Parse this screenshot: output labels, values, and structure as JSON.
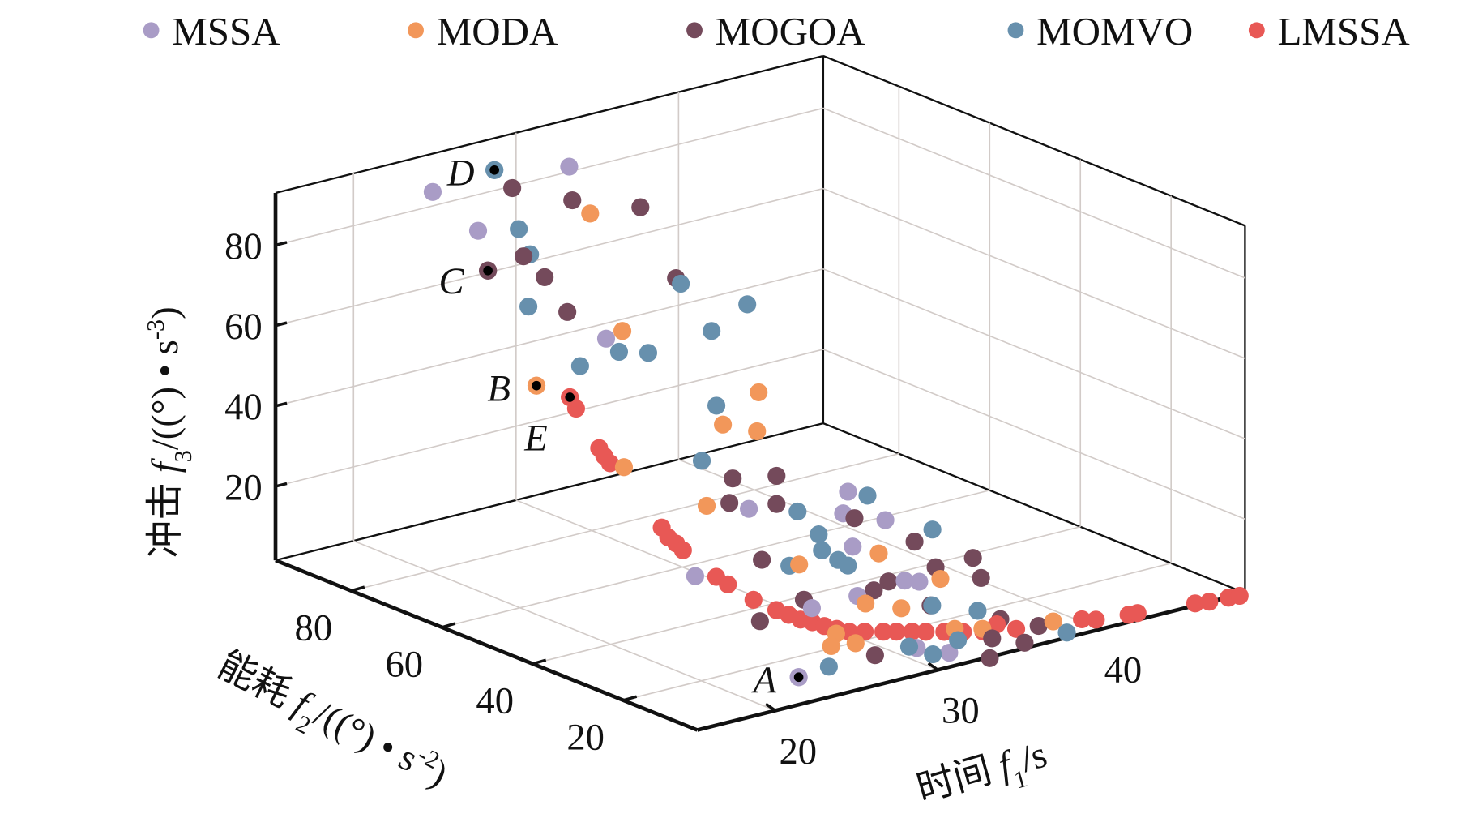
{
  "chart_data": {
    "type": "scatter",
    "subtype": "3d-scatter",
    "title": "",
    "axes": {
      "x": {
        "label_cn": "时间",
        "label_var": "f",
        "label_sub": "1",
        "label_unit": "/s",
        "ticks": [
          20,
          30,
          40
        ],
        "range": [
          15.2,
          48.9
        ]
      },
      "y": {
        "label_cn": "能耗",
        "label_var": "f",
        "label_sub": "2",
        "label_unit": "/((°) • s",
        "label_unit_sup": "-2",
        "label_unit_end": ")",
        "ticks": [
          20,
          40,
          60,
          80
        ],
        "range": [
          3.7,
          96.7
        ]
      },
      "z": {
        "label_cn": "冲击",
        "label_var": "f",
        "label_sub": "3",
        "label_unit": "/((°) • s",
        "label_unit_sup": "-3",
        "label_unit_end": ")",
        "ticks": [
          20,
          40,
          60,
          80
        ],
        "range": [
          1.6,
          93
        ]
      }
    },
    "grid": true,
    "legend_position": "top",
    "series": [
      {
        "name": "MSSA",
        "color": "#a99cc6",
        "points": [
          [
            23.0,
            90,
            88.4
          ],
          [
            31.4,
            90,
            86.2
          ],
          [
            24.4,
            85,
            79.6
          ],
          [
            25.3,
            60,
            63.2
          ],
          [
            25.2,
            40,
            13.3
          ],
          [
            28.5,
            40,
            26.7
          ],
          [
            34.6,
            40,
            24.8
          ],
          [
            34.3,
            40,
            19.7
          ],
          [
            36.9,
            40,
            15.4
          ],
          [
            32.1,
            30,
            18.2
          ],
          [
            35.3,
            30,
            6.5
          ],
          [
            31.0,
            25,
            9.3
          ],
          [
            34.8,
            25,
            9.0
          ],
          [
            31.9,
            8,
            2.0
          ],
          [
            29.9,
            8,
            5.2
          ],
          [
            26.8,
            20,
            12.8
          ],
          [
            21.8,
            5,
            7.5
          ]
        ]
      },
      {
        "name": "MODA",
        "color": "#f2975a",
        "points": [
          [
            29.9,
            80,
            80.6
          ],
          [
            26.3,
            60,
            64.1
          ],
          [
            25.2,
            75,
            44.8
          ],
          [
            30.5,
            45,
            51.4
          ],
          [
            28.3,
            45,
            45.6
          ],
          [
            30.4,
            45,
            41.8
          ],
          [
            25.0,
            55,
            33.8
          ],
          [
            27.3,
            45,
            26.4
          ],
          [
            30.2,
            35,
            13.4
          ],
          [
            35.1,
            35,
            11.2
          ],
          [
            30.1,
            20,
            10.6
          ],
          [
            32.3,
            20,
            7.2
          ],
          [
            32.8,
            10,
            6.1
          ],
          [
            36.1,
            25,
            8.4
          ],
          [
            23.8,
            5,
            13.2
          ],
          [
            25.3,
            5,
            12.4
          ],
          [
            34.5,
            10,
            4.4
          ],
          [
            38.3,
            8,
            3.3
          ],
          [
            25.5,
            10,
            12.3
          ]
        ]
      },
      {
        "name": "MOGOA",
        "color": "#744a5b",
        "points": [
          [
            26.5,
            85,
            88.1
          ],
          [
            28.8,
            80,
            85.0
          ],
          [
            30.2,
            70,
            86.4
          ],
          [
            25.8,
            80,
            74.1
          ],
          [
            27.1,
            80,
            67.6
          ],
          [
            27.1,
            75,
            61.2
          ],
          [
            26.4,
            90,
            65.4
          ],
          [
            29.6,
            60,
            73.9
          ],
          [
            30.3,
            50,
            27.9
          ],
          [
            31.6,
            45,
            29.5
          ],
          [
            28.7,
            45,
            25.7
          ],
          [
            31.6,
            45,
            22.5
          ],
          [
            35.0,
            40,
            17.8
          ],
          [
            37.3,
            35,
            11.9
          ],
          [
            39.5,
            30,
            7.9
          ],
          [
            38.6,
            25,
            6.1
          ],
          [
            29.3,
            40,
            13.2
          ],
          [
            27.7,
            25,
            11.7
          ],
          [
            25.0,
            25,
            9.1
          ],
          [
            33.4,
            30,
            6.0
          ],
          [
            37.2,
            30,
            7.9
          ],
          [
            34.1,
            20,
            6.1
          ],
          [
            37.0,
            15,
            2.0
          ],
          [
            35.7,
            5,
            2.0
          ],
          [
            33.7,
            5,
            5.1
          ],
          [
            33.0,
            3,
            1.8
          ],
          [
            26.5,
            5,
            8.2
          ],
          [
            37.4,
            8,
            3.1
          ],
          [
            34.3,
            30,
            7.3
          ]
        ]
      },
      {
        "name": "MOMVO",
        "color": "#6790ad",
        "points": [
          [
            26.8,
            90,
            90.0
          ],
          [
            26.9,
            85,
            77.5
          ],
          [
            27.6,
            85,
            70.5
          ],
          [
            26.1,
            80,
            61.3
          ],
          [
            23.7,
            60,
            58.0
          ],
          [
            24.7,
            55,
            62.8
          ],
          [
            25.1,
            50,
            64.4
          ],
          [
            28.5,
            55,
            75.9
          ],
          [
            29.0,
            50,
            65.9
          ],
          [
            29.8,
            45,
            74.0
          ],
          [
            27.9,
            45,
            50.7
          ],
          [
            27.0,
            45,
            37.9
          ],
          [
            31.5,
            40,
            23.0
          ],
          [
            32.8,
            40,
            16.0
          ],
          [
            35.8,
            40,
            22.6
          ],
          [
            31.6,
            35,
            15.5
          ],
          [
            32.6,
            35,
            12.1
          ],
          [
            33.2,
            35,
            10.1
          ],
          [
            29.6,
            35,
            13.7
          ],
          [
            38.4,
            35,
            13.8
          ],
          [
            35.6,
            15,
            5.5
          ],
          [
            34.2,
            20,
            6.0
          ],
          [
            28.6,
            5,
            8.2
          ],
          [
            29.5,
            3,
            6.3
          ],
          [
            31.6,
            5,
            6.8
          ],
          [
            23.1,
            3,
            9.7
          ],
          [
            38.3,
            5,
            1.9
          ]
        ]
      },
      {
        "name": "LMSSA",
        "color": "#e85855",
        "points": [
          [
            25.3,
            68.0,
            45
          ],
          [
            25.6,
            67.7,
            42
          ],
          [
            27.3,
            68.7,
            30
          ],
          [
            27.5,
            68.3,
            28
          ],
          [
            27.8,
            68.1,
            26
          ],
          [
            29.0,
            61.0,
            12
          ],
          [
            28.7,
            58.5,
            11
          ],
          [
            28.8,
            57.1,
            10
          ],
          [
            28.8,
            55.6,
            9
          ],
          [
            28.7,
            47.9,
            6
          ],
          [
            28.8,
            45.7,
            5
          ],
          [
            28.7,
            39.7,
            4
          ],
          [
            28.6,
            34.3,
            4
          ],
          [
            29.0,
            33.0,
            3
          ],
          [
            29.0,
            30.4,
            3
          ],
          [
            29.2,
            28.5,
            3
          ],
          [
            29.3,
            26.2,
            3
          ],
          [
            29.5,
            24.2,
            3
          ],
          [
            29.7,
            22.1,
            3
          ],
          [
            30.3,
            20.9,
            3
          ],
          [
            31.0,
            19.3,
            3
          ],
          [
            31.5,
            18.2,
            3
          ],
          [
            32.1,
            16.9,
            3
          ],
          [
            32.6,
            15.7,
            3
          ],
          [
            33.3,
            14.1,
            3
          ],
          [
            34.0,
            12.5,
            3
          ],
          [
            34.8,
            10.9,
            3
          ],
          [
            36.0,
            12.2,
            3
          ],
          [
            36.3,
            9.0,
            3
          ],
          [
            39.7,
            6.7,
            3
          ],
          [
            40.2,
            5.4,
            3
          ],
          [
            41.9,
            4.3,
            3
          ],
          [
            42.4,
            4.1,
            3
          ],
          [
            45.5,
            2.5,
            3
          ],
          [
            46.2,
            1.9,
            3
          ],
          [
            47.3,
            1.6,
            3
          ],
          [
            47.9,
            1.3,
            3
          ]
        ]
      }
    ],
    "annotations": [
      {
        "label": "A",
        "series": "MSSA",
        "point": [
          21.8,
          5,
          7.5
        ]
      },
      {
        "label": "B",
        "series": "MODA",
        "point": [
          25.2,
          75,
          44.8
        ]
      },
      {
        "label": "C",
        "series": "MOGOA",
        "point": [
          26.4,
          90,
          65.4
        ]
      },
      {
        "label": "D",
        "series": "MOMVO",
        "point": [
          26.8,
          90,
          90.0
        ]
      },
      {
        "label": "E",
        "series": "LMSSA",
        "point": [
          25.3,
          68.0,
          45
        ]
      }
    ]
  }
}
